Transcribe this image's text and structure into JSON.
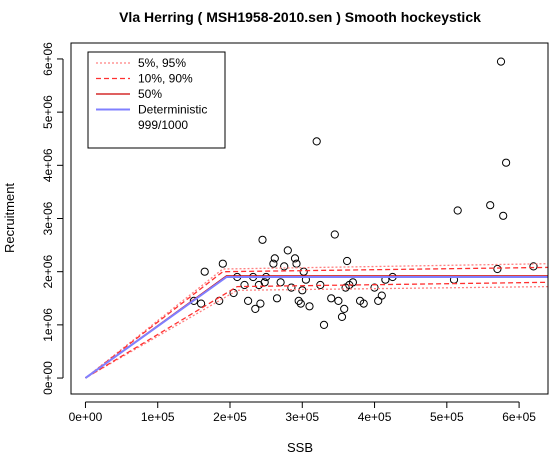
{
  "chart_data": {
    "type": "scatter",
    "title": "Vla Herring  ( MSH1958-2010.sen ) Smooth hockeystick",
    "xlabel": "SSB",
    "ylabel": "Recruitment",
    "xlim": [
      -20000,
      640000
    ],
    "ylim": [
      -300000,
      6300000
    ],
    "xticks": [
      0,
      100000,
      200000,
      300000,
      400000,
      500000,
      600000
    ],
    "xtick_labels": [
      "0e+00",
      "1e+05",
      "2e+05",
      "3e+05",
      "4e+05",
      "5e+05",
      "6e+05"
    ],
    "yticks": [
      0,
      1000000,
      2000000,
      3000000,
      4000000,
      5000000,
      6000000
    ],
    "ytick_labels": [
      "0e+00",
      "1e+06",
      "2e+06",
      "3e+06",
      "4e+06",
      "5e+06",
      "6e+06"
    ],
    "legend": {
      "position": "top-left",
      "entries": [
        {
          "label": "5%, 95%",
          "color": "#ff8080",
          "style": "dotted"
        },
        {
          "label": "10%, 90%",
          "color": "#ff3030",
          "style": "dashed"
        },
        {
          "label": "50%",
          "color": "#cc0000",
          "style": "solid"
        },
        {
          "label": "Deterministic",
          "color": "#8080ff",
          "style": "solid"
        },
        {
          "label": "999/1000",
          "color": "",
          "style": "none"
        }
      ]
    },
    "lines": [
      {
        "name": "5%, 95%",
        "color": "#ff8080",
        "style": "dotted",
        "segments": [
          [
            [
              0,
              0
            ],
            [
              190000,
              2050000
            ],
            [
              640000,
              2150000
            ]
          ],
          [
            [
              0,
              0
            ],
            [
              210000,
              1650000
            ],
            [
              640000,
              1720000
            ]
          ]
        ]
      },
      {
        "name": "10%, 90%",
        "color": "#ff3030",
        "style": "dashed",
        "segments": [
          [
            [
              0,
              0
            ],
            [
              190000,
              2000000
            ],
            [
              640000,
              2080000
            ]
          ],
          [
            [
              0,
              0
            ],
            [
              210000,
              1720000
            ],
            [
              640000,
              1800000
            ]
          ]
        ]
      },
      {
        "name": "50%",
        "color": "#cc0000",
        "style": "solid",
        "segments": [
          [
            [
              0,
              0
            ],
            [
              195000,
              1920000
            ],
            [
              640000,
              1920000
            ]
          ]
        ]
      },
      {
        "name": "Deterministic",
        "color": "#8080ff",
        "style": "solid",
        "segments": [
          [
            [
              0,
              0
            ],
            [
              195000,
              1900000
            ],
            [
              640000,
              1900000
            ]
          ]
        ]
      }
    ],
    "points": [
      [
        150000,
        1450000
      ],
      [
        160000,
        1400000
      ],
      [
        165000,
        2000000
      ],
      [
        185000,
        1450000
      ],
      [
        190000,
        2150000
      ],
      [
        205000,
        1600000
      ],
      [
        210000,
        1900000
      ],
      [
        220000,
        1750000
      ],
      [
        225000,
        1450000
      ],
      [
        232000,
        1900000
      ],
      [
        235000,
        1300000
      ],
      [
        240000,
        1750000
      ],
      [
        242000,
        1400000
      ],
      [
        245000,
        2600000
      ],
      [
        248000,
        1800000
      ],
      [
        250000,
        1900000
      ],
      [
        260000,
        2150000
      ],
      [
        262000,
        2250000
      ],
      [
        265000,
        1500000
      ],
      [
        270000,
        1800000
      ],
      [
        275000,
        2100000
      ],
      [
        280000,
        2400000
      ],
      [
        285000,
        1700000
      ],
      [
        290000,
        2250000
      ],
      [
        292000,
        2150000
      ],
      [
        295000,
        1450000
      ],
      [
        298000,
        1400000
      ],
      [
        300000,
        1650000
      ],
      [
        302000,
        2000000
      ],
      [
        305000,
        1850000
      ],
      [
        310000,
        1350000
      ],
      [
        320000,
        4450000
      ],
      [
        325000,
        1750000
      ],
      [
        330000,
        1000000
      ],
      [
        340000,
        1500000
      ],
      [
        345000,
        2700000
      ],
      [
        350000,
        1450000
      ],
      [
        355000,
        1150000
      ],
      [
        358000,
        1300000
      ],
      [
        360000,
        1700000
      ],
      [
        362000,
        2200000
      ],
      [
        365000,
        1750000
      ],
      [
        370000,
        1800000
      ],
      [
        380000,
        1450000
      ],
      [
        385000,
        1400000
      ],
      [
        400000,
        1700000
      ],
      [
        405000,
        1450000
      ],
      [
        410000,
        1550000
      ],
      [
        415000,
        1850000
      ],
      [
        425000,
        1900000
      ],
      [
        510000,
        1850000
      ],
      [
        515000,
        3150000
      ],
      [
        560000,
        3250000
      ],
      [
        570000,
        2050000
      ],
      [
        575000,
        5950000
      ],
      [
        578000,
        3050000
      ],
      [
        582000,
        4050000
      ],
      [
        620000,
        2100000
      ]
    ]
  }
}
